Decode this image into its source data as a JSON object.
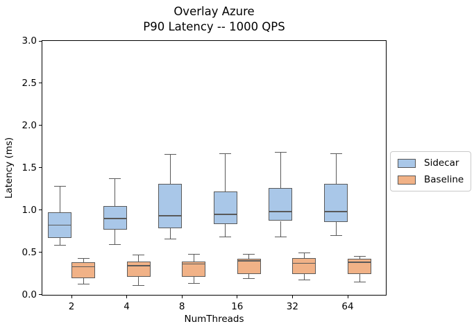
{
  "chart_data": {
    "type": "boxplot",
    "title": "Overlay Azure",
    "subtitle": "P90 Latency -- 1000 QPS",
    "xlabel": "NumThreads",
    "ylabel": "Latency (ms)",
    "ylim": [
      0.0,
      3.0
    ],
    "grid": false,
    "yticks": [
      "0.0",
      "0.5",
      "1.0",
      "1.5",
      "2.0",
      "2.5",
      "3.0"
    ],
    "categories": [
      "2",
      "4",
      "8",
      "16",
      "32",
      "64"
    ],
    "legend_position": "center-right-outside",
    "style": {
      "sidecar_fill": "#a9c7e8",
      "baseline_fill": "#f1b287",
      "edge_color": "#595959",
      "spine_color": "#000000"
    },
    "series": [
      {
        "name": "Sidecar",
        "color": "#a9c7e8",
        "boxes": [
          {
            "whislo": 0.58,
            "q1": 0.67,
            "med": 0.82,
            "q3": 0.97,
            "whishi": 1.28
          },
          {
            "whislo": 0.59,
            "q1": 0.77,
            "med": 0.9,
            "q3": 1.05,
            "whishi": 1.37
          },
          {
            "whislo": 0.66,
            "q1": 0.78,
            "med": 0.93,
            "q3": 1.31,
            "whishi": 1.66
          },
          {
            "whislo": 0.68,
            "q1": 0.83,
            "med": 0.95,
            "q3": 1.22,
            "whishi": 1.67
          },
          {
            "whislo": 0.68,
            "q1": 0.87,
            "med": 0.98,
            "q3": 1.26,
            "whishi": 1.68
          },
          {
            "whislo": 0.7,
            "q1": 0.86,
            "med": 0.98,
            "q3": 1.31,
            "whishi": 1.67
          }
        ]
      },
      {
        "name": "Baseline",
        "color": "#f1b287",
        "boxes": [
          {
            "whislo": 0.12,
            "q1": 0.19,
            "med": 0.33,
            "q3": 0.38,
            "whishi": 0.43
          },
          {
            "whislo": 0.11,
            "q1": 0.21,
            "med": 0.34,
            "q3": 0.39,
            "whishi": 0.47
          },
          {
            "whislo": 0.13,
            "q1": 0.21,
            "med": 0.36,
            "q3": 0.39,
            "whishi": 0.48
          },
          {
            "whislo": 0.19,
            "q1": 0.24,
            "med": 0.4,
            "q3": 0.42,
            "whishi": 0.48
          },
          {
            "whislo": 0.17,
            "q1": 0.24,
            "med": 0.37,
            "q3": 0.43,
            "whishi": 0.49
          },
          {
            "whislo": 0.15,
            "q1": 0.24,
            "med": 0.38,
            "q3": 0.42,
            "whishi": 0.45
          }
        ]
      }
    ]
  }
}
